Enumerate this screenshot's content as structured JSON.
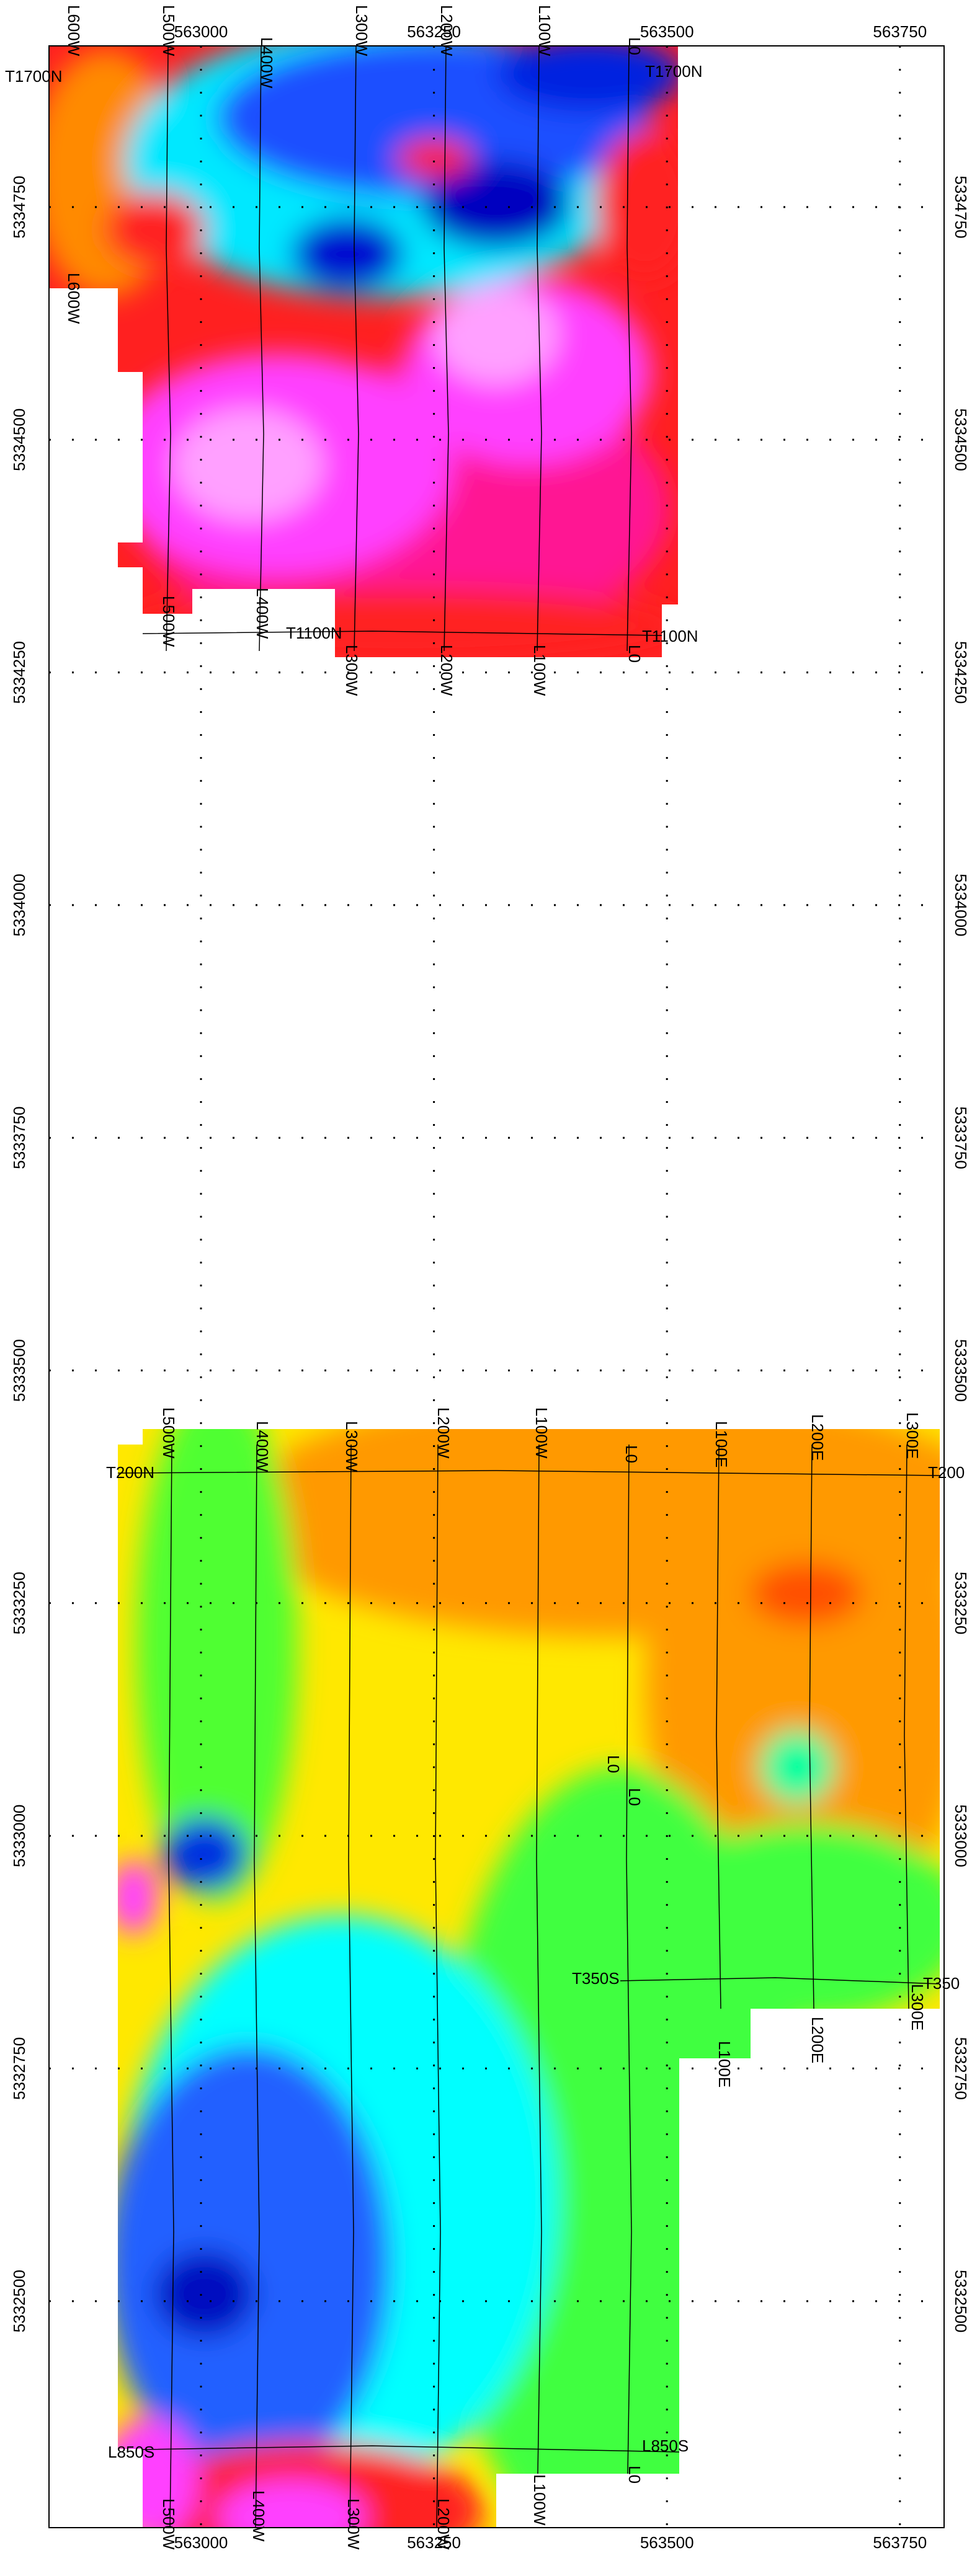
{
  "map": {
    "easting_ticks": [
      563000,
      563250,
      563500,
      563750
    ],
    "northing_ticks": [
      5334750,
      5334500,
      5334250,
      5334000,
      5333750,
      5333500,
      5333250,
      5333000,
      5332750,
      5332500
    ]
  },
  "north_block": {
    "line_labels_top": [
      "L600W",
      "L500W",
      "L400W",
      "L300W",
      "L200W",
      "L100W",
      "L0"
    ],
    "tie_labels_top": [
      "T1700N",
      "T1700N"
    ],
    "side_label": "L600W",
    "line_labels_mid": [
      "L500W",
      "L400W"
    ],
    "tie_labels_bottom": [
      "T1100N",
      "T1100N"
    ],
    "line_labels_bottom": [
      "L300W",
      "L200W",
      "L100W",
      "L0"
    ]
  },
  "south_block": {
    "line_labels_top": [
      "L500W",
      "L400W",
      "L300W",
      "L200W",
      "L100W",
      "L0",
      "L100E",
      "L200E",
      "L300E"
    ],
    "tie_labels_top": [
      "T200N",
      "T200"
    ],
    "line_labels_mid": [
      "L0",
      "L0"
    ],
    "tie_labels_mid": [
      "T350S",
      "T350"
    ],
    "line_labels_mid_lower": [
      "L300E",
      "L100E",
      "L200E"
    ],
    "tie_labels_bottom": [
      "L850S",
      "L850S"
    ],
    "line_labels_bottom": [
      "L500W",
      "L400W",
      "L300W",
      "L200W",
      "L100W",
      "L0"
    ]
  }
}
